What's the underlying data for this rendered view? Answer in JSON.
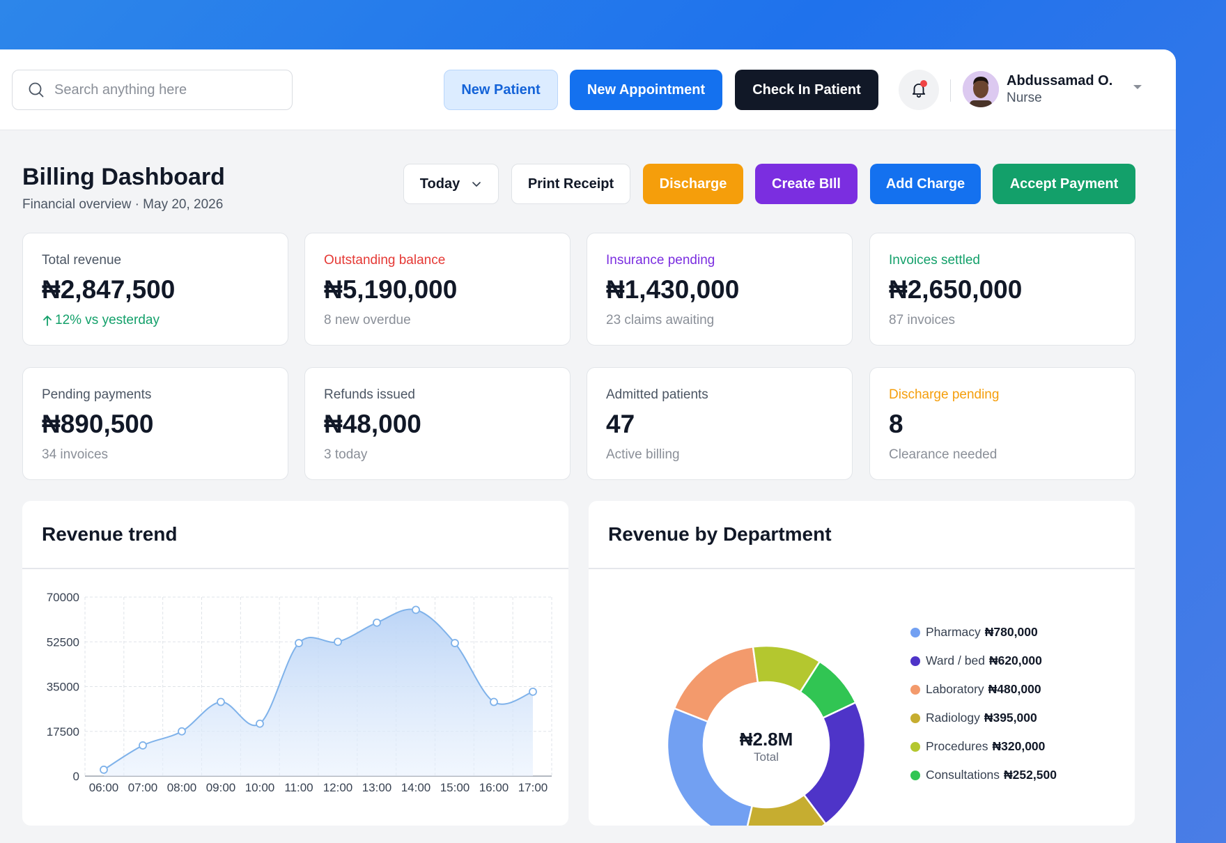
{
  "header": {
    "search_placeholder": "Search anything here",
    "new_patient": "New Patient",
    "new_appointment": "New Appointment",
    "check_in": "Check In Patient",
    "user_name": "Abdussamad O.",
    "user_role": "Nurse"
  },
  "page": {
    "title": "Billing Dashboard",
    "subtitle": "Financial overview · May 20, 2026"
  },
  "actions": {
    "period": "Today",
    "print_receipt": "Print Receipt",
    "discharge": "Discharge",
    "create_bill": "Create BIll",
    "add_charge": "Add Charge",
    "accept_payment": "Accept Payment"
  },
  "stats": [
    {
      "label": "Total revenue",
      "value": "₦2,847,500",
      "sub": "12% vs yesterday"
    },
    {
      "label": "Outstanding balance",
      "value": "₦5,190,000",
      "sub": "8 new overdue"
    },
    {
      "label": "Insurance pending",
      "value": "₦1,430,000",
      "sub": "23 claims awaiting"
    },
    {
      "label": "Invoices settled",
      "value": "₦2,650,000",
      "sub": "87 invoices"
    },
    {
      "label": "Pending payments",
      "value": "₦890,500",
      "sub": "34 invoices"
    },
    {
      "label": "Refunds issued",
      "value": "₦48,000",
      "sub": "3 today"
    },
    {
      "label": "Admitted patients",
      "value": "47",
      "sub": "Active billing"
    },
    {
      "label": "Discharge pending",
      "value": "8",
      "sub": "Clearance needed"
    }
  ],
  "colors": {
    "primary": "#1471ef",
    "dark": "#111827",
    "discharge": "#f59e0b",
    "create_bill": "#7b2ee0",
    "accept_payment": "#13a06a",
    "alert_red": "#e53935",
    "line": "#7fb2ea"
  },
  "revenue_trend": {
    "title": "Revenue trend"
  },
  "revenue_by_department": {
    "title": "Revenue by Department",
    "center_value": "₦2.8M",
    "center_label": "Total"
  },
  "chart_data": [
    {
      "type": "area",
      "title": "Revenue trend",
      "xlabel": "",
      "ylabel": "",
      "categories": [
        "06:00",
        "07:00",
        "08:00",
        "09:00",
        "10:00",
        "11:00",
        "12:00",
        "13:00",
        "14:00",
        "15:00",
        "16:00",
        "17:00"
      ],
      "series": [
        {
          "values": [
            2500,
            12000,
            17500,
            29000,
            20500,
            52000,
            52500,
            60000,
            65000,
            52000,
            29000,
            33000
          ]
        }
      ],
      "yticks": [
        0,
        17500,
        35000,
        52500,
        70000
      ],
      "ylim": [
        0,
        70000
      ],
      "grid": true
    },
    {
      "type": "pie",
      "title": "Revenue by Department",
      "categories": [
        "Pharmacy",
        "Ward / bed",
        "Laboratory",
        "Radiology",
        "Procedures",
        "Consultations"
      ],
      "labels": [
        "₦780,000",
        "₦620,000",
        "₦480,000",
        "₦395,000",
        "₦320,000",
        "₦252,500"
      ],
      "values": [
        780000,
        620000,
        480000,
        395000,
        320000,
        252500
      ],
      "colors": [
        "#72a0f2",
        "#4e34c8",
        "#f39a6c",
        "#c6ad30",
        "#b4c72f",
        "#31c553"
      ],
      "legend": "right"
    }
  ]
}
